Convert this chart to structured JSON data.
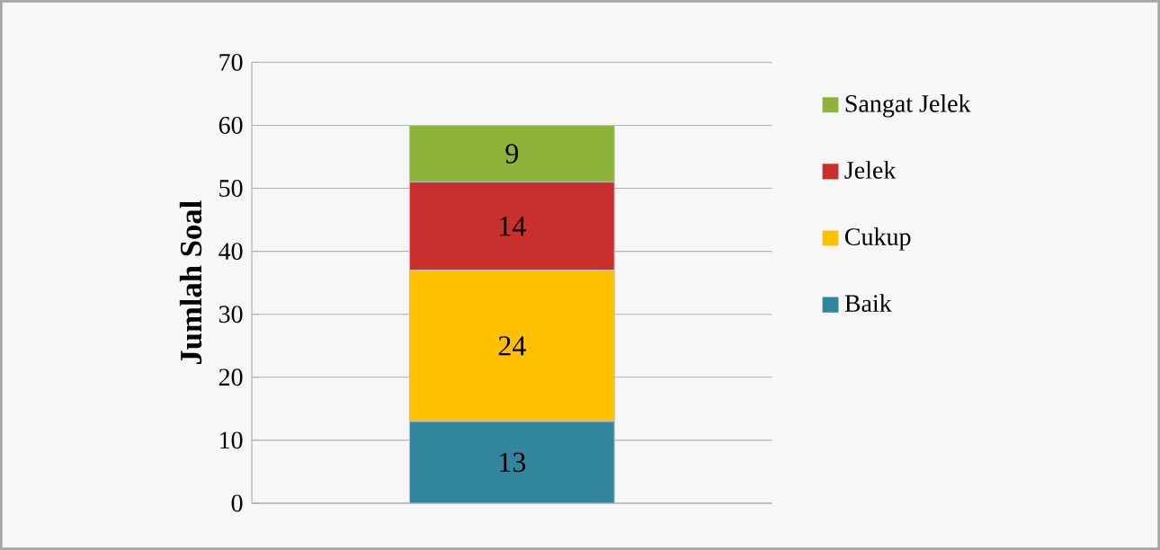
{
  "chart_data": {
    "type": "bar",
    "stacked": true,
    "ylabel": "Jumlah Soal",
    "categories": [
      null
    ],
    "series": [
      {
        "name": "Baik",
        "color": "#31859c",
        "values": [
          13
        ]
      },
      {
        "name": "Cukup",
        "color": "#ffc000",
        "values": [
          24
        ]
      },
      {
        "name": "Jelek",
        "color": "#c8302e",
        "values": [
          14
        ]
      },
      {
        "name": "Sangat Jelek",
        "color": "#8db33a",
        "values": [
          9
        ]
      }
    ],
    "ylim": [
      0,
      70
    ],
    "yticks": [
      0,
      10,
      20,
      30,
      40,
      50,
      60,
      70
    ],
    "grid": "y",
    "legend": "right",
    "data_labels": true
  }
}
